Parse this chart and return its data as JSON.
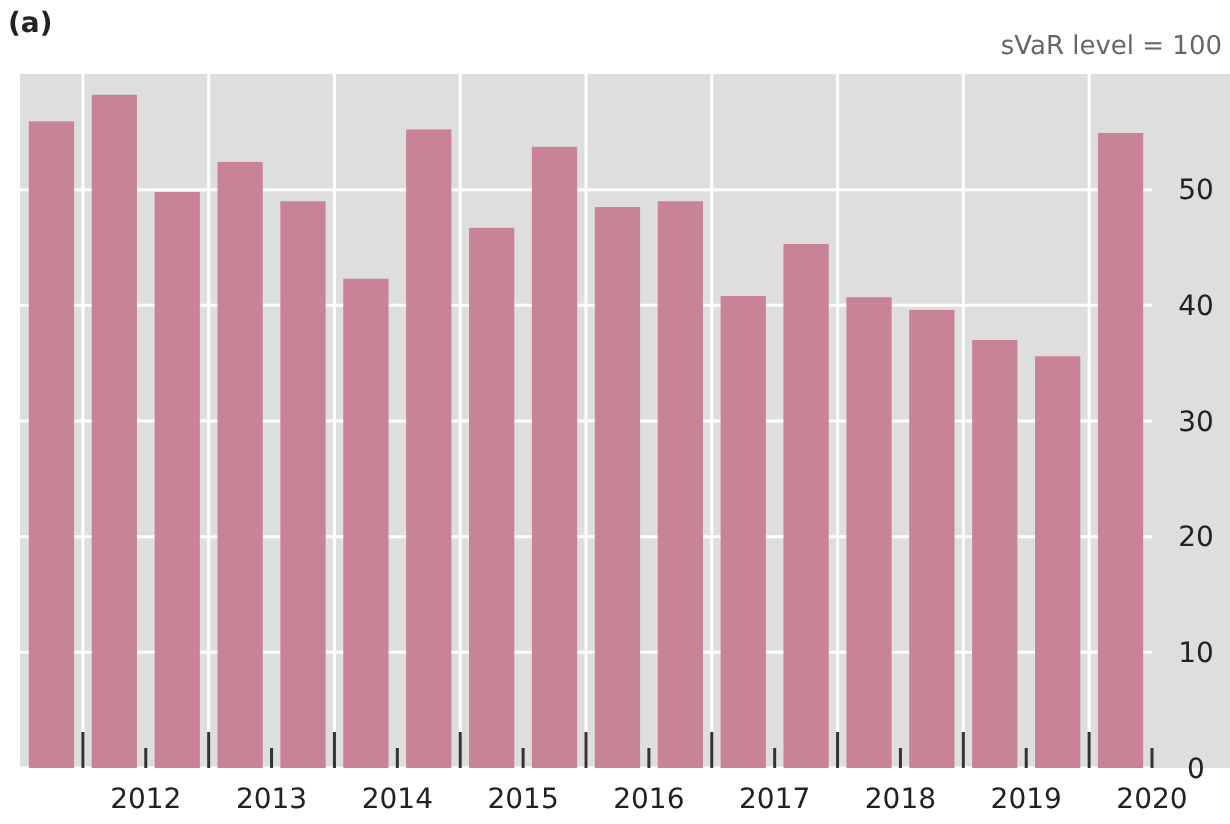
{
  "chart_data": {
    "type": "bar",
    "title": "(a)",
    "annotations": [
      "sVaR level = 100"
    ],
    "x": [
      2011.25,
      2011.75,
      2012.25,
      2012.75,
      2013.25,
      2013.75,
      2014.25,
      2014.75,
      2015.25,
      2015.75,
      2016.25,
      2016.75,
      2017.25,
      2017.75,
      2018.25,
      2018.75,
      2019.25,
      2019.75
    ],
    "values": [
      55.9,
      58.2,
      49.8,
      52.4,
      49.0,
      42.3,
      55.2,
      46.7,
      53.7,
      48.5,
      49.0,
      40.8,
      45.3,
      40.7,
      39.6,
      37.0,
      35.6,
      54.9
    ],
    "color": "#c98396",
    "xlim": [
      2011,
      2020
    ],
    "xticks": [
      {
        "value": 2011.5,
        "label": null
      },
      2012,
      {
        "value": 2012.5,
        "label": null
      },
      2013,
      {
        "value": 2013.5,
        "label": null
      },
      2014,
      {
        "value": 2014.5,
        "label": null
      },
      2015,
      {
        "value": 2015.5,
        "label": null
      },
      2016,
      {
        "value": 2016.5,
        "label": null
      },
      2017,
      {
        "value": 2017.5,
        "label": null
      },
      2018,
      {
        "value": 2018.5,
        "label": null
      },
      2019,
      {
        "value": 2019.5,
        "label": null
      },
      2020
    ],
    "ylim": [
      0,
      60
    ],
    "yticks": [
      0,
      10,
      20,
      30,
      40,
      50
    ],
    "grid": true
  }
}
